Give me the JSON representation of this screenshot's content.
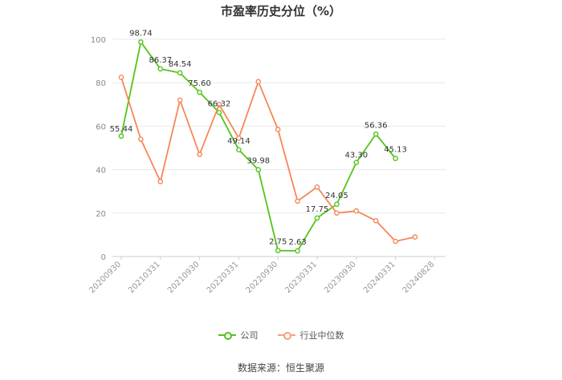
{
  "chart_data": {
    "type": "line",
    "title": "市盈率历史分位（%）",
    "ylim": [
      0,
      100
    ],
    "yticks": [
      0,
      20,
      40,
      60,
      80,
      100
    ],
    "x_labels": [
      "20200930",
      "20210331",
      "20210930",
      "20220331",
      "20220930",
      "20230331",
      "20230930",
      "20240331",
      "20240828"
    ],
    "grid": true,
    "legend_position": "bottom",
    "series": [
      {
        "name": "公司",
        "color": "#52c41a",
        "values": [
          55.44,
          98.74,
          86.37,
          84.54,
          75.6,
          66.32,
          49.14,
          39.98,
          2.75,
          2.63,
          17.75,
          24.05,
          43.3,
          56.36,
          45.13
        ],
        "labels": [
          "55.44",
          "98.74",
          "86.37",
          "84.54",
          "75.60",
          "66.32",
          "49.14",
          "39.98",
          "2.75",
          "2.63",
          "17.75",
          "24.05",
          "43.30",
          "56.36",
          "45.13"
        ]
      },
      {
        "name": "行业中位数",
        "color": "#f5875a",
        "values": [
          82.5,
          54,
          34.5,
          72,
          47,
          70,
          54.5,
          80.5,
          58.5,
          25.5,
          32,
          20,
          21,
          16.5,
          7,
          9
        ]
      }
    ]
  },
  "source": "数据来源：恒生聚源"
}
